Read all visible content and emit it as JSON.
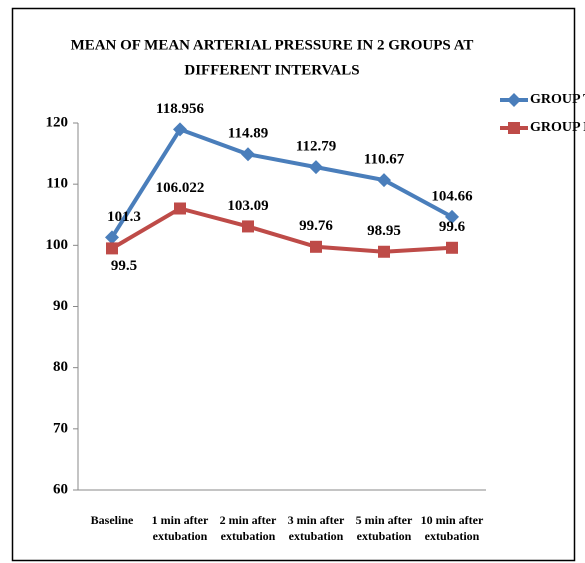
{
  "chart_data": {
    "type": "line",
    "title": [
      "MEAN OF MEAN ARTERIAL PRESSURE IN 2 GROUPS AT",
      "DIFFERENT INTERVALS"
    ],
    "categories": [
      "Baseline",
      "1 min after extubation",
      "2 min after extubation",
      "3 min after extubation",
      "5 min after extubation",
      "10 min after extubation"
    ],
    "series": [
      {
        "name": "GROUP T",
        "color": "#4a7ebb",
        "marker": "diamond",
        "values": [
          101.3,
          118.956,
          114.89,
          112.79,
          110.67,
          104.66
        ]
      },
      {
        "name": "GROUP L",
        "color": "#be4b48",
        "marker": "square",
        "values": [
          99.5,
          106.022,
          103.09,
          99.76,
          98.95,
          99.6
        ]
      }
    ],
    "ylim": [
      60,
      120
    ],
    "yticks": [
      60,
      70,
      80,
      90,
      100,
      110,
      120
    ],
    "grid": false,
    "legend": "right"
  }
}
